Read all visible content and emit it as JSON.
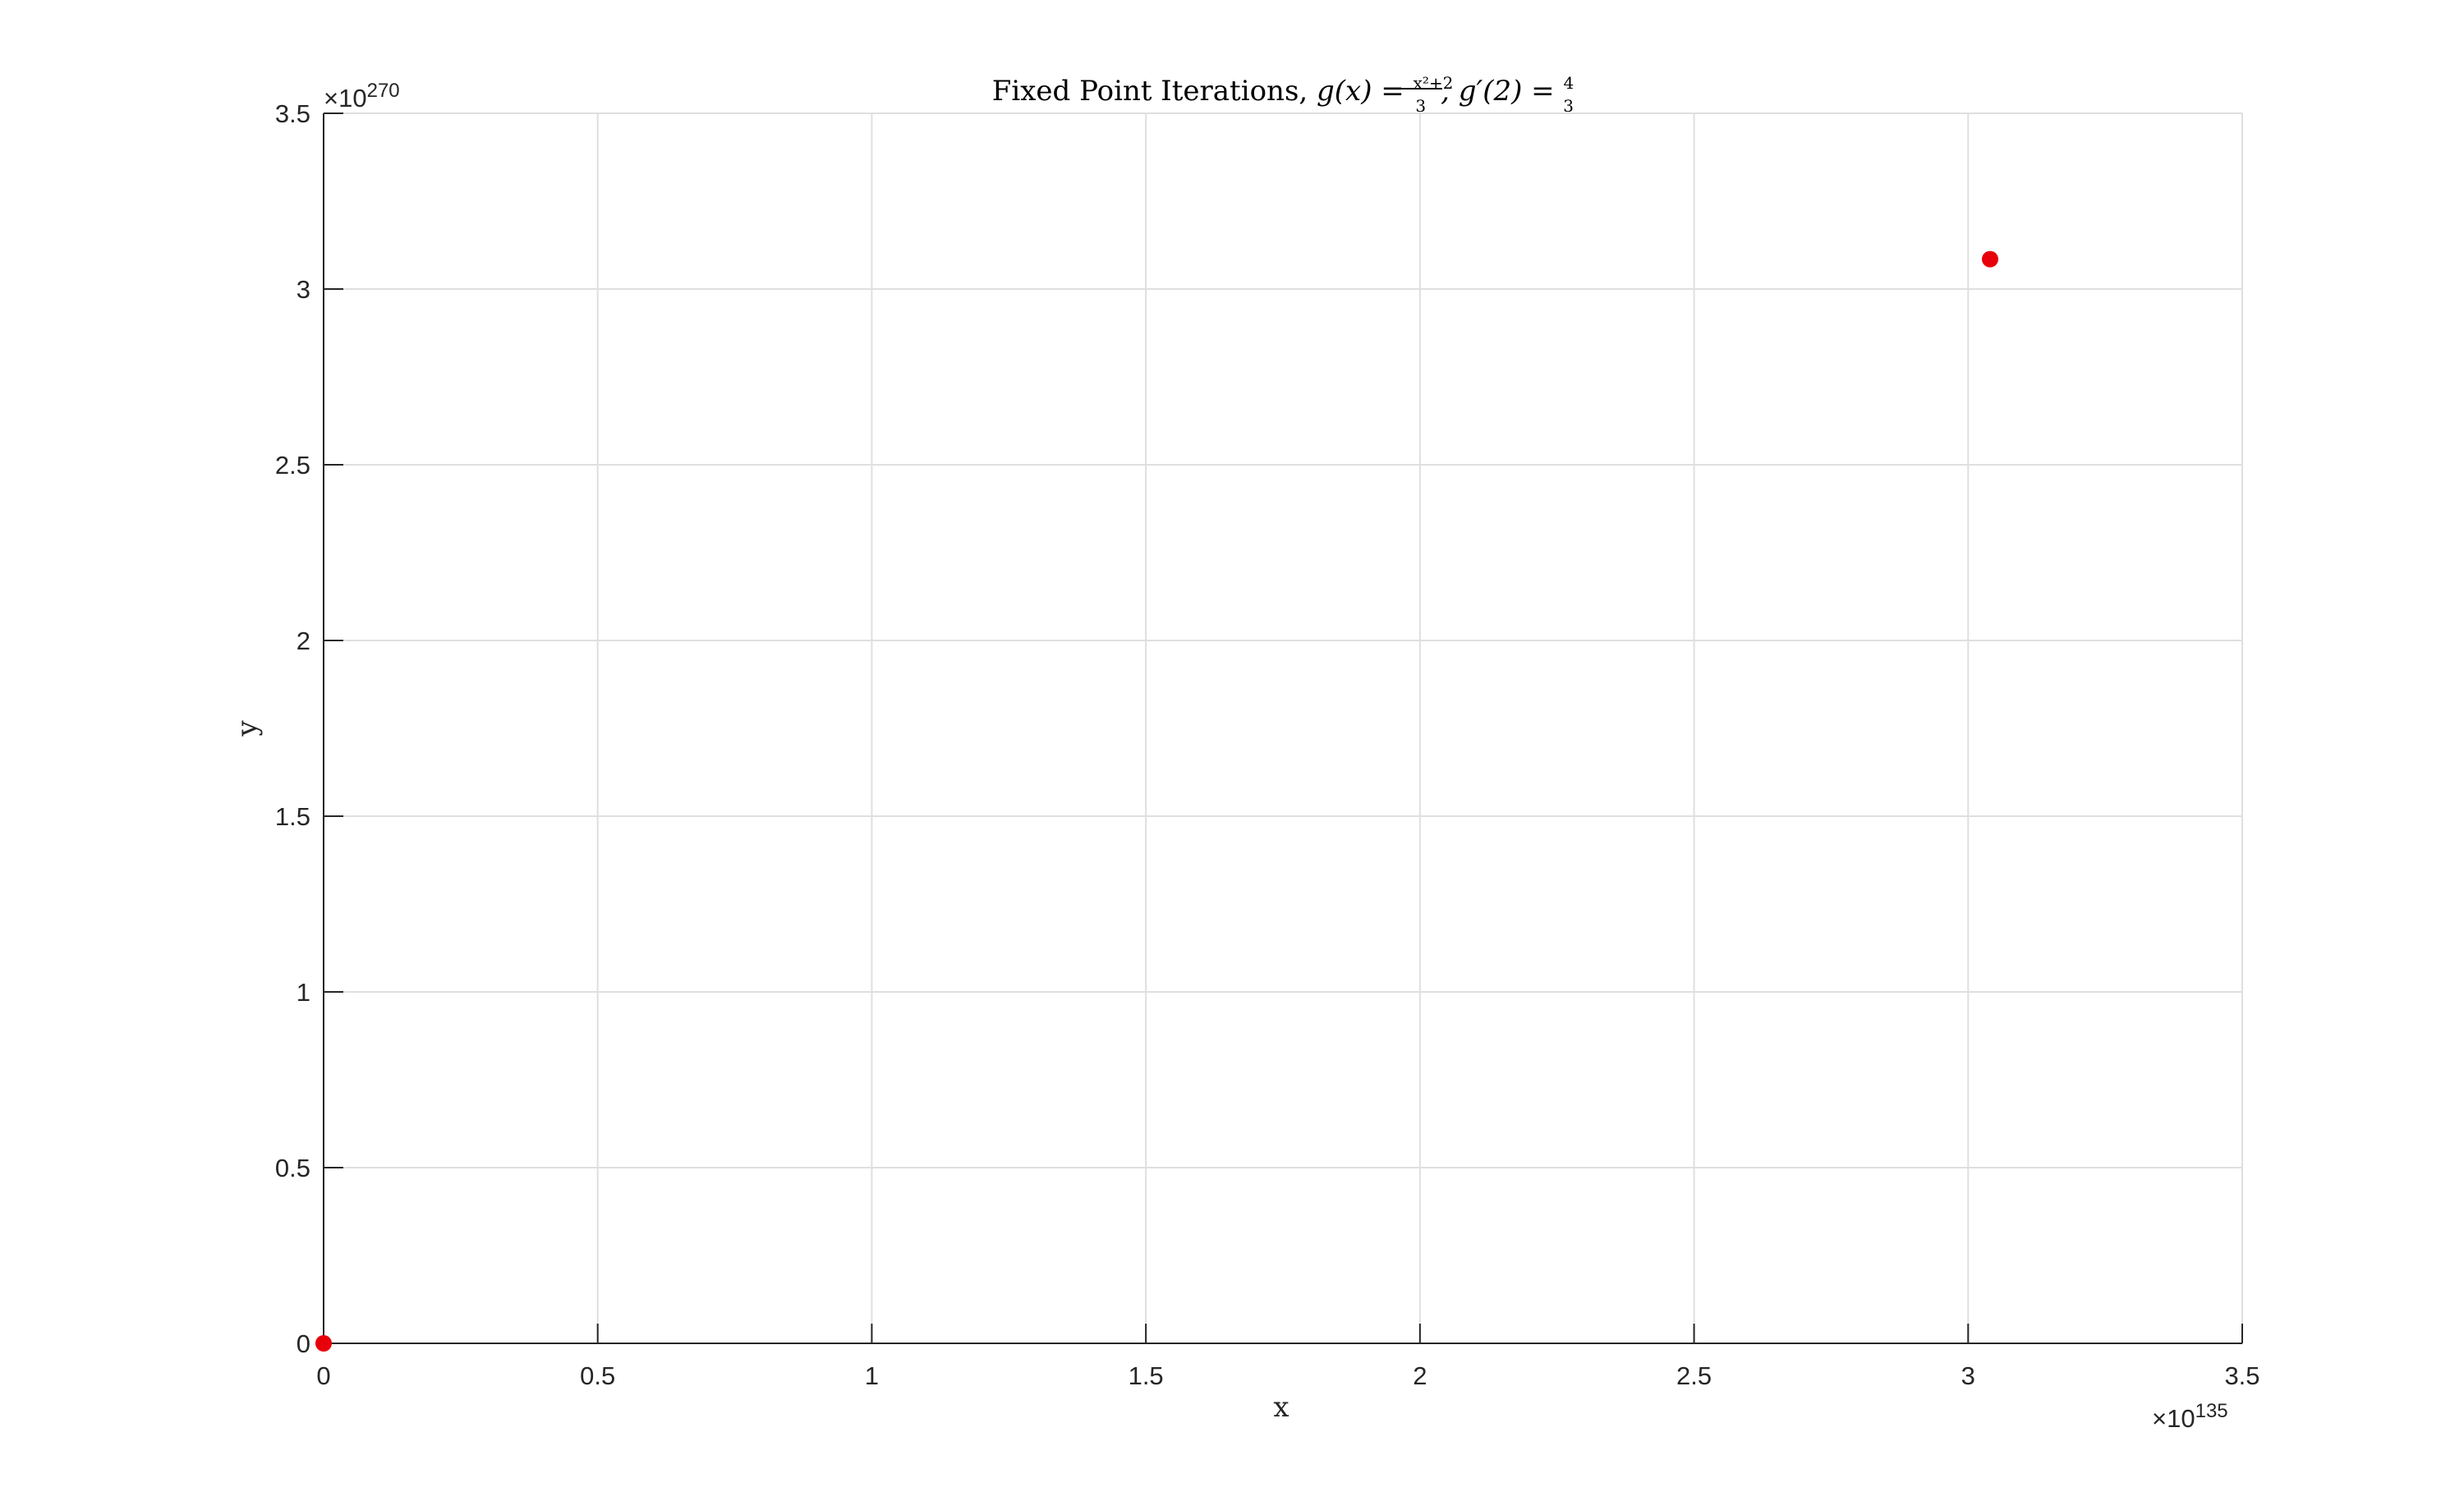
{
  "chart_data": {
    "type": "scatter",
    "title": {
      "prefix": "Fixed Point Iterations, ",
      "g_func": "g(x) = ",
      "frac1_num": "x²+2",
      "frac1_den": "3",
      "deriv": ", g′(2) = ",
      "frac2_num": "4",
      "frac2_den": "3"
    },
    "xlabel": "x",
    "ylabel": "y",
    "x_exponent": {
      "base": "×10",
      "power": "135"
    },
    "y_exponent": {
      "base": "×10",
      "power": "270"
    },
    "xlim": [
      0,
      3.5
    ],
    "ylim": [
      0,
      3.5
    ],
    "xticks": [
      "0",
      "0.5",
      "1",
      "1.5",
      "2",
      "2.5",
      "3",
      "3.5"
    ],
    "yticks": [
      "0",
      "0.5",
      "1",
      "1.5",
      "2",
      "2.5",
      "3",
      "3.5"
    ],
    "grid": true,
    "series": [
      {
        "color": "#e8000b",
        "points": [
          {
            "x": 0,
            "y": 0
          },
          {
            "x": 3.04,
            "y": 3.085
          }
        ]
      }
    ]
  }
}
